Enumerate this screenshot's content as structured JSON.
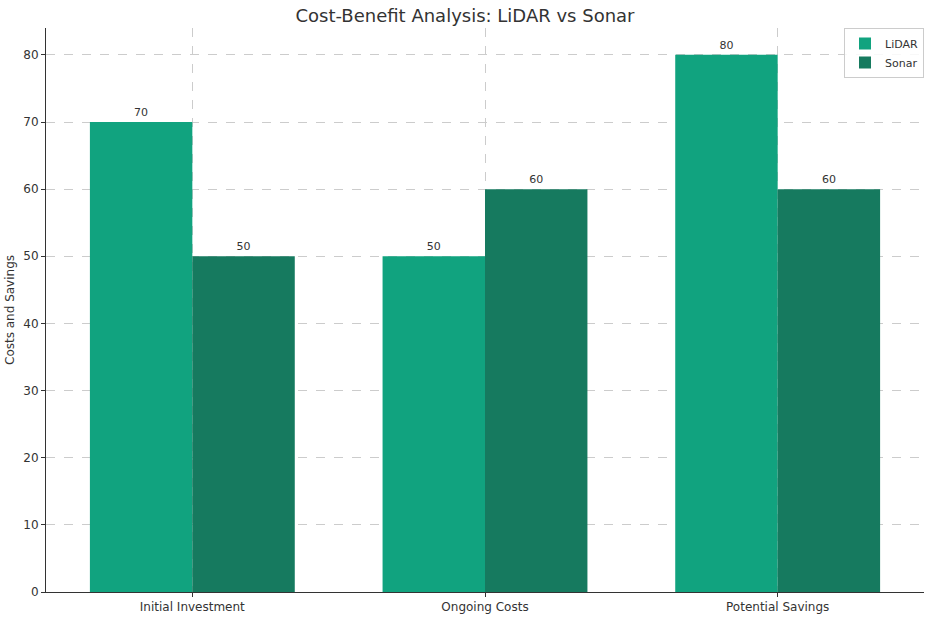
{
  "chart_data": {
    "type": "bar",
    "title": "Cost-Benefit Analysis: LiDAR vs Sonar",
    "y_label": "Costs and Savings",
    "categories": [
      "Initial Investment",
      "Ongoing Costs",
      "Potential Savings"
    ],
    "series": [
      {
        "name": "LiDAR",
        "color": "#11a37f",
        "values": [
          70,
          50,
          80
        ]
      },
      {
        "name": "Sonar",
        "color": "#167a5f",
        "values": [
          50,
          60,
          60
        ]
      }
    ],
    "ylim": [
      0,
      84
    ],
    "yticks": [
      0,
      10,
      20,
      30,
      40,
      50,
      60,
      70,
      80
    ],
    "grid": true,
    "legend": "upper right",
    "data_labels": true
  }
}
